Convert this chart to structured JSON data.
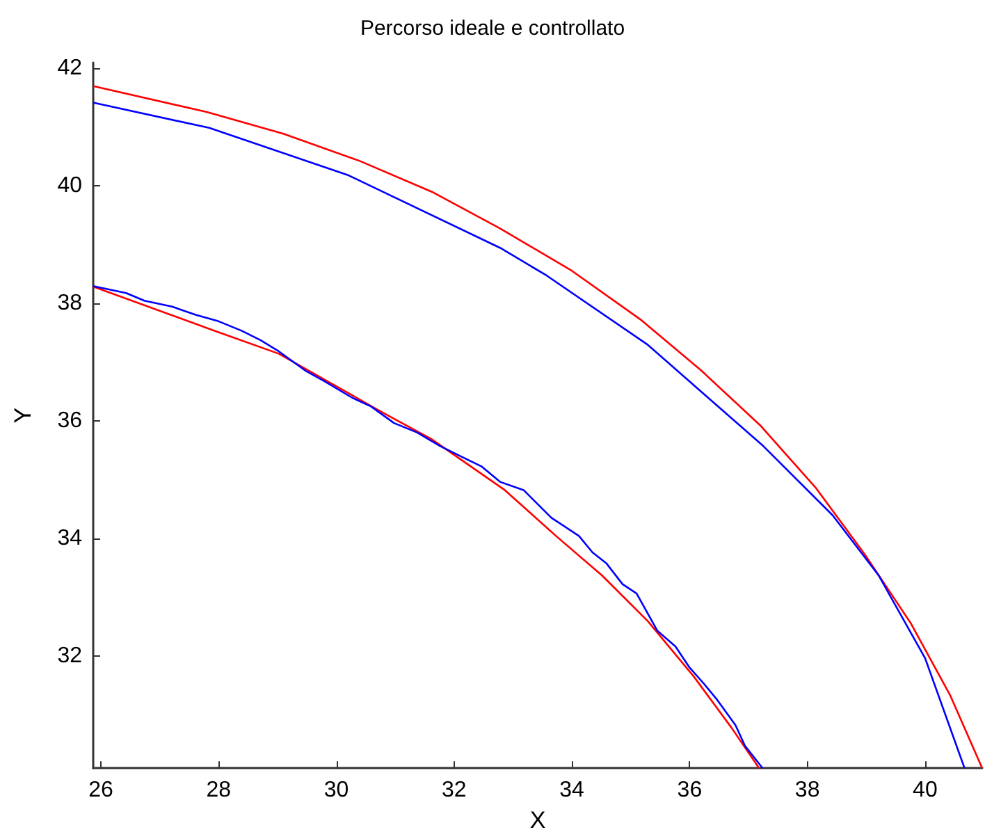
{
  "chart_data": {
    "type": "line",
    "title": "Percorso ideale e controllato",
    "xlabel": "X",
    "ylabel": "Y",
    "xlim": [
      25.87,
      40.97
    ],
    "ylim": [
      30.09,
      42.09
    ],
    "xticks": [
      26,
      28,
      30,
      32,
      34,
      36,
      38,
      40
    ],
    "yticks": [
      32,
      34,
      36,
      38,
      40,
      42
    ],
    "grid": false,
    "marker": "none",
    "line_style": "solid",
    "series": [
      {
        "color": "#ff0000",
        "x": [
          25.87,
          27.8,
          29.1,
          30.39,
          31.65,
          32.78,
          34.0,
          35.18,
          36.19,
          37.21,
          38.15,
          38.98,
          39.76,
          40.43,
          40.97
        ],
        "values": [
          41.69,
          41.25,
          40.88,
          40.42,
          39.88,
          39.27,
          38.55,
          37.71,
          36.86,
          35.91,
          34.85,
          33.72,
          32.55,
          31.32,
          30.09
        ]
      },
      {
        "color": "#0000ff",
        "x": [
          25.87,
          27.84,
          30.19,
          32.78,
          33.57,
          35.29,
          37.25,
          38.43,
          39.21,
          40.0,
          40.67
        ],
        "values": [
          41.41,
          40.98,
          40.18,
          38.94,
          38.47,
          37.29,
          35.57,
          34.39,
          33.37,
          31.96,
          30.09
        ]
      },
      {
        "color": "#ff0000",
        "x": [
          25.87,
          27.98,
          29.02,
          30.82,
          31.61,
          32.86,
          33.73,
          34.51,
          35.29,
          36.07,
          36.71,
          37.18
        ],
        "values": [
          38.28,
          37.51,
          37.14,
          36.12,
          35.69,
          34.82,
          34.04,
          33.37,
          32.59,
          31.65,
          30.78,
          30.09
        ]
      },
      {
        "color": "#0000ff",
        "x": [
          25.87,
          26.43,
          26.74,
          27.21,
          27.61,
          28.0,
          28.39,
          28.71,
          29.02,
          29.49,
          29.8,
          30.27,
          30.59,
          30.98,
          31.37,
          31.76,
          32.16,
          32.47,
          32.78,
          33.18,
          33.65,
          34.12,
          34.35,
          34.59,
          34.86,
          35.1,
          35.45,
          35.76,
          36.0,
          36.24,
          36.47,
          36.78,
          36.94,
          37.24
        ],
        "values": [
          38.29,
          38.17,
          38.04,
          37.94,
          37.8,
          37.69,
          37.53,
          37.37,
          37.18,
          36.84,
          36.67,
          36.39,
          36.24,
          35.96,
          35.8,
          35.57,
          35.37,
          35.22,
          34.96,
          34.82,
          34.35,
          34.04,
          33.76,
          33.57,
          33.22,
          33.06,
          32.43,
          32.16,
          31.8,
          31.53,
          31.25,
          30.82,
          30.47,
          30.09
        ]
      }
    ]
  }
}
